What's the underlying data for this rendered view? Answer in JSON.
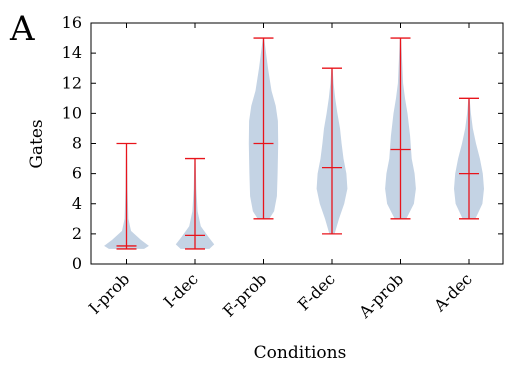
{
  "panel_label": "A",
  "chart_data": {
    "type": "violin",
    "title": "",
    "xlabel": "Conditions",
    "ylabel": "Gates",
    "ylim": [
      0,
      16
    ],
    "yticks": [
      0,
      2,
      4,
      6,
      8,
      10,
      12,
      14,
      16
    ],
    "categories": [
      "I-prob",
      "I-dec",
      "F-prob",
      "F-dec",
      "A-prob",
      "A-dec"
    ],
    "colors": {
      "body": "#c4d3e4",
      "stats": "#e8141b"
    },
    "violins": [
      {
        "category": "I-prob",
        "min": 1,
        "max": 8,
        "mean": 1.2,
        "median": 1,
        "profile": [
          [
            1,
            0.55
          ],
          [
            1.2,
            0.7
          ],
          [
            1.6,
            0.45
          ],
          [
            2.2,
            0.14
          ],
          [
            3,
            0.06
          ],
          [
            5,
            0.03
          ],
          [
            7,
            0.02
          ],
          [
            8,
            0.01
          ]
        ]
      },
      {
        "category": "I-dec",
        "min": 1,
        "max": 7,
        "mean": 1.9,
        "median": 2,
        "profile": [
          [
            1,
            0.45
          ],
          [
            1.3,
            0.6
          ],
          [
            1.8,
            0.42
          ],
          [
            2.5,
            0.18
          ],
          [
            3.5,
            0.08
          ],
          [
            5,
            0.04
          ],
          [
            7,
            0.02
          ]
        ]
      },
      {
        "category": "F-prob",
        "min": 3,
        "max": 15,
        "mean": 8,
        "median": 8,
        "profile": [
          [
            3,
            0.18
          ],
          [
            3.5,
            0.33
          ],
          [
            4.5,
            0.42
          ],
          [
            6,
            0.44
          ],
          [
            8,
            0.46
          ],
          [
            9.5,
            0.45
          ],
          [
            10.5,
            0.38
          ],
          [
            11.5,
            0.25
          ],
          [
            13,
            0.14
          ],
          [
            14.5,
            0.05
          ],
          [
            15,
            0.02
          ]
        ]
      },
      {
        "category": "F-dec",
        "min": 2,
        "max": 13,
        "mean": 6.4,
        "median": 6,
        "profile": [
          [
            2,
            0.08
          ],
          [
            3,
            0.22
          ],
          [
            4,
            0.38
          ],
          [
            5,
            0.48
          ],
          [
            6,
            0.45
          ],
          [
            7,
            0.36
          ],
          [
            8,
            0.3
          ],
          [
            9,
            0.25
          ],
          [
            10,
            0.17
          ],
          [
            11,
            0.1
          ],
          [
            12,
            0.05
          ],
          [
            13,
            0.02
          ]
        ]
      },
      {
        "category": "A-prob",
        "min": 3,
        "max": 15,
        "mean": 7.6,
        "median": 7,
        "profile": [
          [
            3,
            0.18
          ],
          [
            4,
            0.42
          ],
          [
            5,
            0.48
          ],
          [
            6,
            0.44
          ],
          [
            7,
            0.35
          ],
          [
            8.5,
            0.3
          ],
          [
            10,
            0.22
          ],
          [
            11,
            0.14
          ],
          [
            12,
            0.08
          ],
          [
            14,
            0.04
          ],
          [
            15,
            0.02
          ]
        ]
      },
      {
        "category": "A-dec",
        "min": 3,
        "max": 11,
        "mean": 6,
        "median": 6,
        "profile": [
          [
            3,
            0.2
          ],
          [
            4,
            0.42
          ],
          [
            5,
            0.47
          ],
          [
            6,
            0.43
          ],
          [
            7,
            0.34
          ],
          [
            8,
            0.22
          ],
          [
            9,
            0.12
          ],
          [
            10,
            0.06
          ],
          [
            11,
            0.02
          ]
        ]
      }
    ]
  }
}
